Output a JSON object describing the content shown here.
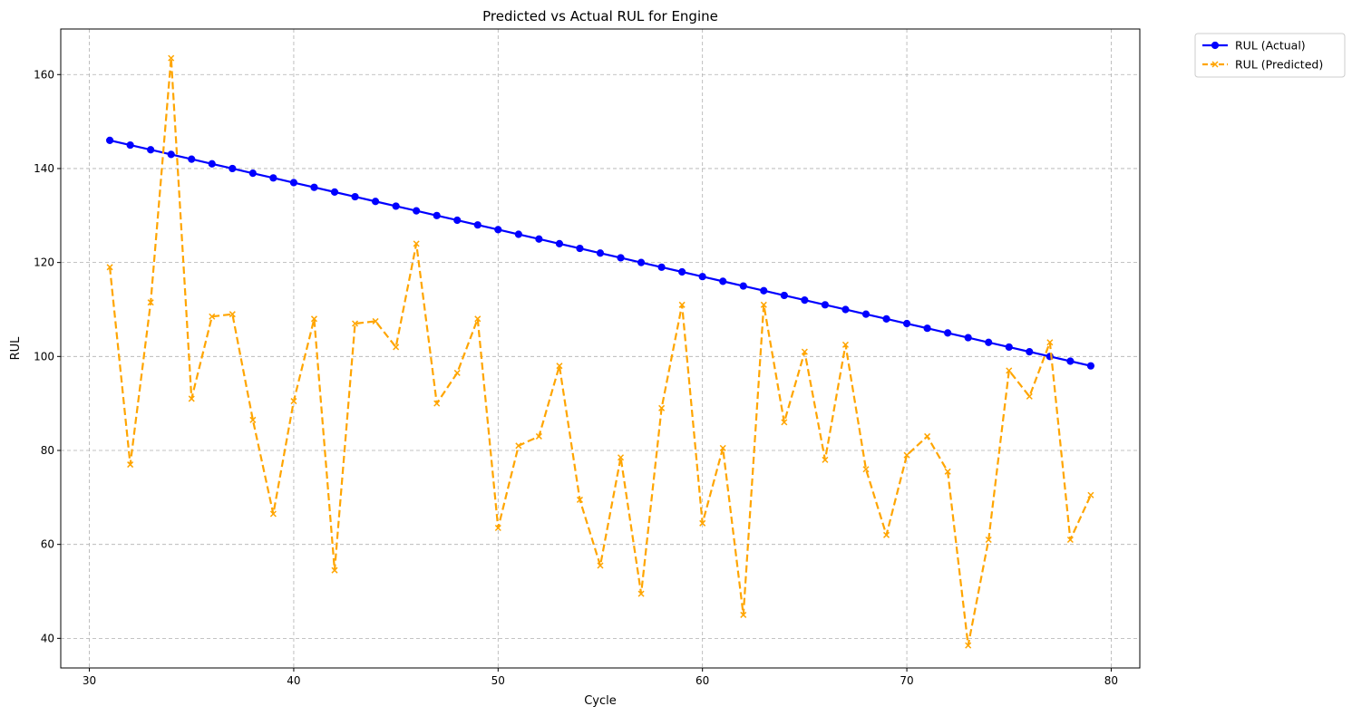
{
  "chart_data": {
    "type": "line",
    "title": "Predicted vs Actual RUL for Engine",
    "xlabel": "Cycle",
    "ylabel": "RUL",
    "xlim": [
      28.6,
      81.4
    ],
    "ylim": [
      33.7,
      169.7
    ],
    "xticks": [
      30,
      40,
      50,
      60,
      70,
      80
    ],
    "yticks": [
      40,
      60,
      80,
      100,
      120,
      140,
      160
    ],
    "grid": true,
    "grid_style": "dashed",
    "legend_position": "outside-top-right",
    "x": [
      31,
      32,
      33,
      34,
      35,
      36,
      37,
      38,
      39,
      40,
      41,
      42,
      43,
      44,
      45,
      46,
      47,
      48,
      49,
      50,
      51,
      52,
      53,
      54,
      55,
      56,
      57,
      58,
      59,
      60,
      61,
      62,
      63,
      64,
      65,
      66,
      67,
      68,
      69,
      70,
      71,
      72,
      73,
      74,
      75,
      76,
      77,
      78,
      79
    ],
    "series": [
      {
        "name": "RUL (Actual)",
        "color": "#0000ff",
        "line_style": "solid",
        "marker": "circle",
        "values": [
          146,
          145,
          144,
          143,
          142,
          141,
          140,
          139,
          138,
          137,
          136,
          135,
          134,
          133,
          132,
          131,
          130,
          129,
          128,
          127,
          126,
          125,
          124,
          123,
          122,
          121,
          120,
          119,
          118,
          117,
          116,
          115,
          114,
          113,
          112,
          111,
          110,
          109,
          108,
          107,
          106,
          105,
          104,
          103,
          102,
          101,
          100,
          99,
          98
        ]
      },
      {
        "name": "RUL (Predicted)",
        "color": "#ffa500",
        "line_style": "dashed",
        "marker": "x",
        "values": [
          119,
          77,
          111.5,
          163.5,
          91,
          108.5,
          109,
          86.5,
          66.5,
          90.5,
          108,
          54.5,
          107,
          107.5,
          102,
          124,
          90,
          96.5,
          108,
          63.5,
          81,
          83,
          98,
          69.5,
          55.5,
          78.5,
          49.5,
          89,
          111,
          64.5,
          80.5,
          45,
          111,
          86,
          101,
          78,
          102.5,
          76,
          62,
          79,
          83,
          75.5,
          38.5,
          61,
          97,
          91.5,
          103,
          61,
          70.5
        ]
      }
    ]
  }
}
